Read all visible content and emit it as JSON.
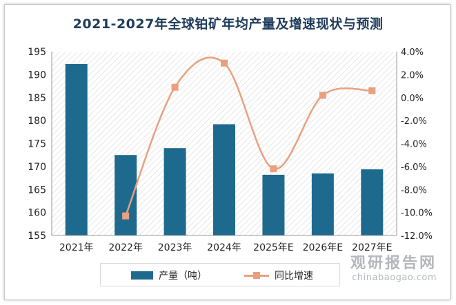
{
  "chart_data": {
    "type": "bar",
    "title": "2021-2027年全球铂矿年均产量及增速现状与预测",
    "categories": [
      "2021年",
      "2022年",
      "2023年",
      "2024年",
      "2025年E",
      "2026年E",
      "2027年E"
    ],
    "series": [
      {
        "name": "产量（吨）",
        "type": "bar",
        "axis": "left",
        "color": "#1e6a8e",
        "values": [
          192.3,
          172.5,
          174.0,
          179.2,
          168.2,
          168.5,
          169.4
        ]
      },
      {
        "name": "同比增速",
        "type": "line",
        "axis": "right",
        "color": "#e8a07e",
        "values": [
          null,
          -10.3,
          0.9,
          3.0,
          -6.2,
          0.2,
          0.6
        ]
      }
    ],
    "y_left": {
      "min": 155,
      "max": 195,
      "ticks": [
        "155",
        "160",
        "165",
        "170",
        "175",
        "180",
        "185",
        "190",
        "195"
      ]
    },
    "y_right": {
      "min": -12,
      "max": 4,
      "ticks": [
        "-12.0%",
        "-10.0%",
        "-8.0%",
        "-6.0%",
        "-4.0%",
        "-2.0%",
        "0.0%",
        "2.0%",
        "4.0%"
      ]
    },
    "legend": "bottom",
    "grid": false
  },
  "watermark": {
    "cn": "观研报告网",
    "en": "chinabaogao.com"
  }
}
